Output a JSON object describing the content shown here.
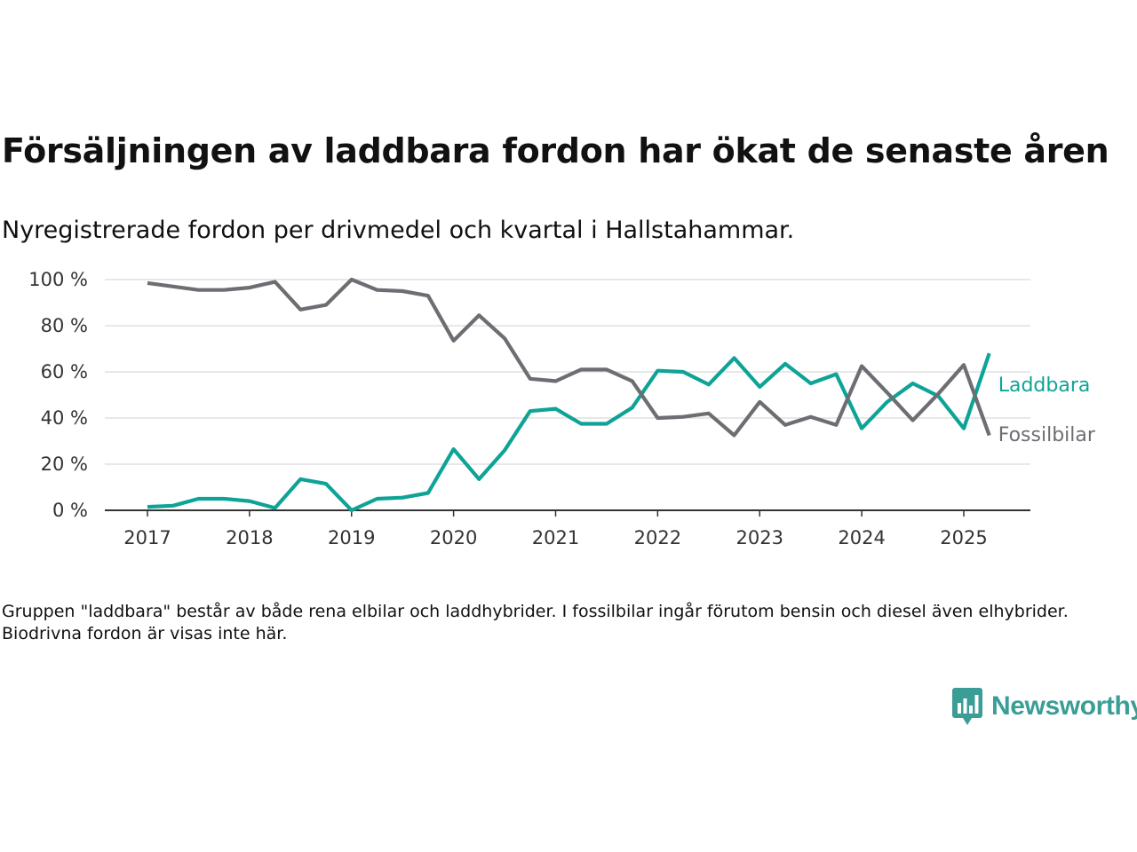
{
  "title": "Försäljningen av laddbara fordon har ökat de senaste åren",
  "subtitle": "Nyregistrerade fordon per drivmedel och kvartal i Hallstahammar.",
  "note": "Gruppen \"laddbara\" består av både rena elbilar och laddhybrider. I fossilbilar ingår förutom bensin och diesel även elhybrider. Biodrivna fordon är visas inte här.",
  "brand": {
    "name": "Newsworthy",
    "icon": "newsworthy-logo-icon",
    "color": "#3a9e96"
  },
  "chart_data": {
    "type": "line",
    "grid": true,
    "ylim": [
      0,
      100
    ],
    "xlim": [
      2017,
      2025.5
    ],
    "y_ticks": [
      0,
      20,
      40,
      60,
      80,
      100
    ],
    "y_tick_labels": [
      "0 %",
      "20 %",
      "40 %",
      "60 %",
      "80 %",
      "100 %"
    ],
    "x_ticks": [
      2017,
      2018,
      2019,
      2020,
      2021,
      2022,
      2023,
      2024,
      2025
    ],
    "x_tick_labels": [
      "2017",
      "2018",
      "2019",
      "2020",
      "2021",
      "2022",
      "2023",
      "2024",
      "2025"
    ],
    "x": [
      2017,
      2017.25,
      2017.5,
      2017.75,
      2018,
      2018.25,
      2018.5,
      2018.75,
      2019,
      2019.25,
      2019.5,
      2019.75,
      2020,
      2020.25,
      2020.5,
      2020.75,
      2021,
      2021.25,
      2021.5,
      2021.75,
      2022,
      2022.25,
      2022.5,
      2022.75,
      2023,
      2023.25,
      2023.5,
      2023.75,
      2024,
      2024.25,
      2024.5,
      2024.75,
      2025,
      2025.25
    ],
    "series": [
      {
        "name": "Laddbara",
        "color": "#0fa397",
        "values": [
          1.5,
          2,
          5,
          5,
          4,
          1,
          13.5,
          11.5,
          0,
          5,
          5.5,
          7.5,
          26.5,
          13.5,
          26,
          43,
          44,
          37.5,
          37.5,
          44.5,
          60.5,
          60,
          54.5,
          66,
          53.5,
          63.5,
          55,
          59,
          35.5,
          47,
          55,
          49.5,
          35.5,
          68
        ]
      },
      {
        "name": "Fossilbilar",
        "color": "#6e6d73",
        "values": [
          98.5,
          97,
          95.5,
          95.5,
          96.5,
          99,
          87,
          89,
          100,
          95.5,
          95,
          93,
          73.5,
          84.5,
          74.5,
          57,
          56,
          61,
          61,
          56,
          40,
          40.5,
          42,
          32.5,
          47,
          37,
          40.5,
          37,
          62.5,
          51,
          39,
          50.5,
          63,
          32.5
        ]
      }
    ]
  }
}
